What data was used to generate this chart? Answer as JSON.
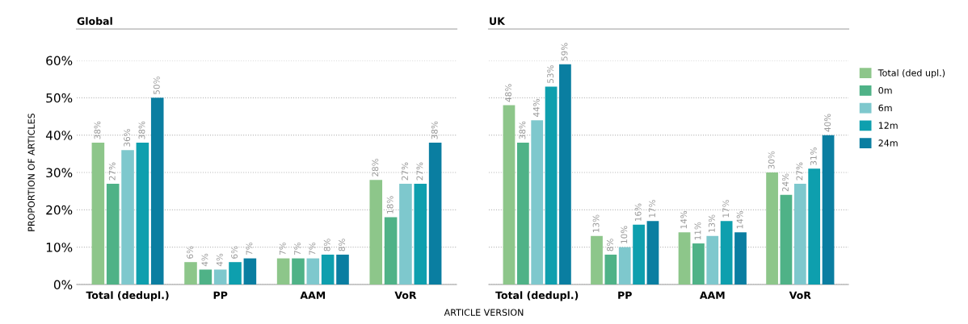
{
  "chart_data": [
    {
      "type": "bar",
      "title": "Global",
      "ylabel": "PROPORTION OF ARTICLES",
      "xlabel": "ARTICLE VERSION",
      "categories": [
        "Total (dedupl.)",
        "PP",
        "AAM",
        "VoR"
      ],
      "series": [
        {
          "color": "#8dc68a",
          "values": [
            38,
            6,
            7,
            28
          ],
          "value_labels": [
            "38%",
            "6%",
            "7%",
            "28%"
          ]
        },
        {
          "color": "#4fb287",
          "values": [
            27,
            4,
            7,
            18
          ],
          "value_labels": [
            "27%",
            "4%",
            "7%",
            "18%"
          ]
        },
        {
          "color": "#7ec8cd",
          "values": [
            36,
            4,
            7,
            27
          ],
          "value_labels": [
            "36%",
            "4%",
            "7%",
            "27%"
          ]
        },
        {
          "color": "#0e9fae",
          "values": [
            38,
            6,
            8,
            27
          ],
          "value_labels": [
            "38%",
            "6%",
            "8%",
            "27%"
          ]
        },
        {
          "color": "#0a7ea1",
          "values": [
            50,
            7,
            8,
            38
          ],
          "value_labels": [
            "50%",
            "7%",
            "8%",
            "38%"
          ]
        }
      ],
      "ylim": [
        0,
        60
      ],
      "yticks": [
        {
          "value": 0,
          "label": "0%"
        },
        {
          "value": 10,
          "label": "10%"
        },
        {
          "value": 20,
          "label": "20%"
        },
        {
          "value": 30,
          "label": "30%"
        },
        {
          "value": 40,
          "label": "40%"
        },
        {
          "value": 50,
          "label": "50%"
        },
        {
          "value": 60,
          "label": "60%"
        }
      ],
      "grid": "y"
    },
    {
      "type": "bar",
      "title": "UK",
      "categories": [
        "Total (dedupl.)",
        "PP",
        "AAM",
        "VoR"
      ],
      "series": [
        {
          "name": "Total (ded upl.)",
          "color": "#8dc68a",
          "values": [
            48,
            13,
            14,
            30
          ],
          "value_labels": [
            "48%",
            "13%",
            "14%",
            "30%"
          ]
        },
        {
          "name": "0m",
          "color": "#4fb287",
          "values": [
            38,
            8,
            11,
            24
          ],
          "value_labels": [
            "38%",
            "8%",
            "11%",
            "24%"
          ]
        },
        {
          "name": "6m",
          "color": "#7ec8cd",
          "values": [
            44,
            10,
            13,
            27
          ],
          "value_labels": [
            "44%",
            "10%",
            "13%",
            "27%"
          ]
        },
        {
          "name": "12m",
          "color": "#0e9fae",
          "values": [
            53,
            16,
            17,
            31
          ],
          "value_labels": [
            "53%",
            "16%",
            "17%",
            "31%"
          ]
        },
        {
          "name": "24m",
          "color": "#0a7ea1",
          "values": [
            59,
            17,
            14,
            40
          ],
          "value_labels": [
            "59%",
            "17%",
            "14%",
            "40%"
          ]
        }
      ],
      "ylim": [
        0,
        60
      ],
      "yticks": [
        0,
        10,
        20,
        30,
        40,
        50,
        60
      ],
      "tick_labels": "x",
      "grid": "y",
      "legend": "right"
    }
  ]
}
